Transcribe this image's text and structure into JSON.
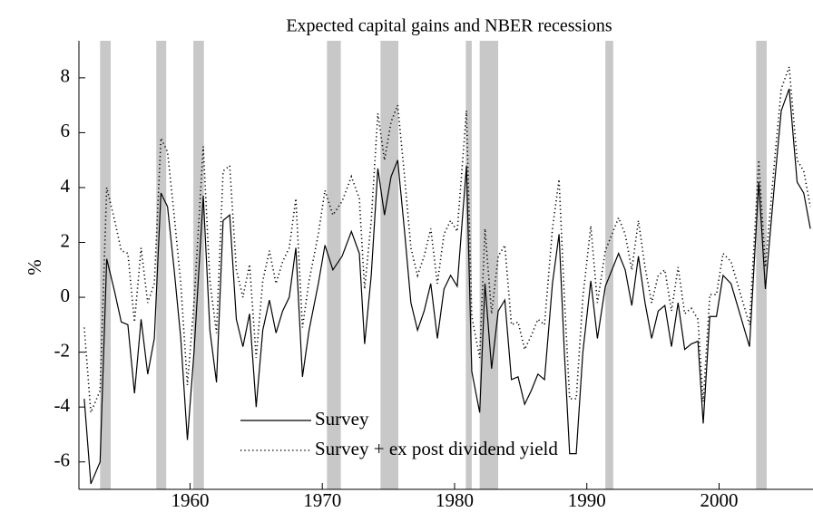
{
  "chart_data": {
    "type": "line",
    "title": "Expected capital gains and NBER recessions",
    "ylabel": "%",
    "xlim": [
      1951.6,
      2007.1
    ],
    "ylim": [
      -7,
      9.35
    ],
    "xticks": [
      1960,
      1970,
      1980,
      1990,
      2000
    ],
    "yticks": [
      -6,
      -4,
      -2,
      0,
      2,
      4,
      6,
      8
    ],
    "grid": false,
    "legend": "lower center",
    "recession_color": "#c8c8c8",
    "recessions": [
      [
        1953.2,
        1954.0
      ],
      [
        1957.45,
        1958.2
      ],
      [
        1960.25,
        1961.05
      ],
      [
        1970.35,
        1971.4
      ],
      [
        1974.4,
        1975.75
      ],
      [
        1980.85,
        1981.3
      ],
      [
        1981.9,
        1983.3
      ],
      [
        1991.4,
        1992.0
      ],
      [
        2002.8,
        2003.6
      ]
    ],
    "x": [
      1952.0,
      1952.5,
      1953.2,
      1953.7,
      1954.3,
      1954.8,
      1955.3,
      1955.8,
      1956.3,
      1956.8,
      1957.3,
      1957.8,
      1958.3,
      1958.8,
      1959.3,
      1959.8,
      1960.3,
      1961.0,
      1961.5,
      1962.0,
      1962.5,
      1963.0,
      1963.5,
      1964.0,
      1964.5,
      1965.0,
      1965.5,
      1966.0,
      1966.5,
      1967.0,
      1967.5,
      1968.0,
      1968.5,
      1969.0,
      1969.7,
      1970.2,
      1970.8,
      1971.5,
      1972.2,
      1972.8,
      1973.2,
      1973.7,
      1974.2,
      1974.7,
      1975.2,
      1975.7,
      1976.2,
      1976.7,
      1977.2,
      1977.7,
      1978.2,
      1978.7,
      1979.2,
      1979.7,
      1980.2,
      1980.9,
      1981.3,
      1981.9,
      1982.3,
      1982.8,
      1983.3,
      1983.8,
      1984.3,
      1984.8,
      1985.3,
      1985.8,
      1986.3,
      1986.8,
      1987.4,
      1987.9,
      1988.3,
      1988.7,
      1989.2,
      1989.7,
      1990.3,
      1990.8,
      1991.4,
      1991.9,
      1992.4,
      1992.9,
      1993.4,
      1993.9,
      1994.4,
      1994.9,
      1995.4,
      1995.9,
      1996.4,
      1996.9,
      1997.4,
      1997.9,
      1998.4,
      1998.8,
      1999.3,
      1999.8,
      2000.3,
      2000.9,
      2002.3,
      2003.0,
      2003.5,
      2004.2,
      2004.7,
      2005.3,
      2005.9,
      2006.4,
      2006.9
    ],
    "series": [
      {
        "name": "Survey",
        "color": "#000000",
        "linestyle": "solid",
        "values": [
          -3.7,
          -6.8,
          -6.0,
          1.4,
          0.2,
          -0.9,
          -1.0,
          -3.5,
          -0.8,
          -2.8,
          -1.5,
          3.8,
          3.3,
          1.0,
          -1.5,
          -5.2,
          -2.0,
          3.7,
          -1.2,
          -3.1,
          2.8,
          3.0,
          -0.8,
          -1.8,
          -0.6,
          -4.0,
          -1.2,
          -0.1,
          -1.3,
          -0.5,
          0.0,
          1.8,
          -2.9,
          -1.2,
          0.5,
          1.9,
          1.0,
          1.5,
          2.4,
          1.6,
          -1.7,
          0.8,
          4.7,
          3.0,
          4.4,
          5.0,
          2.5,
          -0.2,
          -1.2,
          -0.5,
          0.5,
          -1.5,
          0.3,
          0.8,
          0.4,
          4.8,
          -2.7,
          -4.2,
          0.5,
          -2.6,
          -0.5,
          -0.1,
          -3.0,
          -2.9,
          -3.9,
          -3.4,
          -2.8,
          -3.0,
          0.5,
          2.3,
          -2.0,
          -5.7,
          -5.7,
          -2.0,
          0.6,
          -1.5,
          0.4,
          1.0,
          1.6,
          1.0,
          -0.3,
          1.5,
          -0.2,
          -1.5,
          -0.5,
          -0.3,
          -1.8,
          -0.2,
          -1.9,
          -1.7,
          -1.6,
          -4.6,
          -0.7,
          -0.7,
          0.8,
          0.5,
          -1.8,
          4.2,
          0.3,
          4.2,
          6.8,
          7.6,
          4.2,
          3.8,
          2.5
        ]
      },
      {
        "name": "Survey + ex post dividend yield",
        "color": "#000000",
        "linestyle": "dotted",
        "values": [
          -1.1,
          -4.2,
          -3.4,
          4.0,
          2.8,
          1.7,
          1.6,
          -0.9,
          1.8,
          -0.2,
          0.5,
          5.8,
          5.3,
          3.0,
          0.5,
          -3.2,
          -0.2,
          5.5,
          0.6,
          -1.3,
          4.6,
          4.8,
          1.0,
          0.0,
          1.2,
          -2.2,
          0.6,
          1.7,
          0.5,
          1.3,
          1.8,
          3.6,
          -1.1,
          0.6,
          2.3,
          3.9,
          3.0,
          3.5,
          4.4,
          3.6,
          0.3,
          2.8,
          6.7,
          5.0,
          6.4,
          7.0,
          4.5,
          1.8,
          0.8,
          1.5,
          2.5,
          0.5,
          2.3,
          2.8,
          2.4,
          6.8,
          -0.7,
          -2.2,
          2.5,
          -0.6,
          1.5,
          1.9,
          -1.0,
          -0.9,
          -1.9,
          -1.4,
          -0.8,
          -1.0,
          2.5,
          4.3,
          0.0,
          -3.7,
          -3.7,
          0.0,
          2.6,
          -0.2,
          1.7,
          2.3,
          2.9,
          2.3,
          1.0,
          2.8,
          1.1,
          -0.2,
          0.8,
          1.0,
          -0.5,
          1.1,
          -0.6,
          -0.4,
          -0.8,
          -3.8,
          0.1,
          0.1,
          1.6,
          1.3,
          -1.0,
          5.0,
          1.1,
          5.0,
          7.6,
          8.4,
          5.0,
          4.6,
          3.3
        ]
      }
    ]
  }
}
